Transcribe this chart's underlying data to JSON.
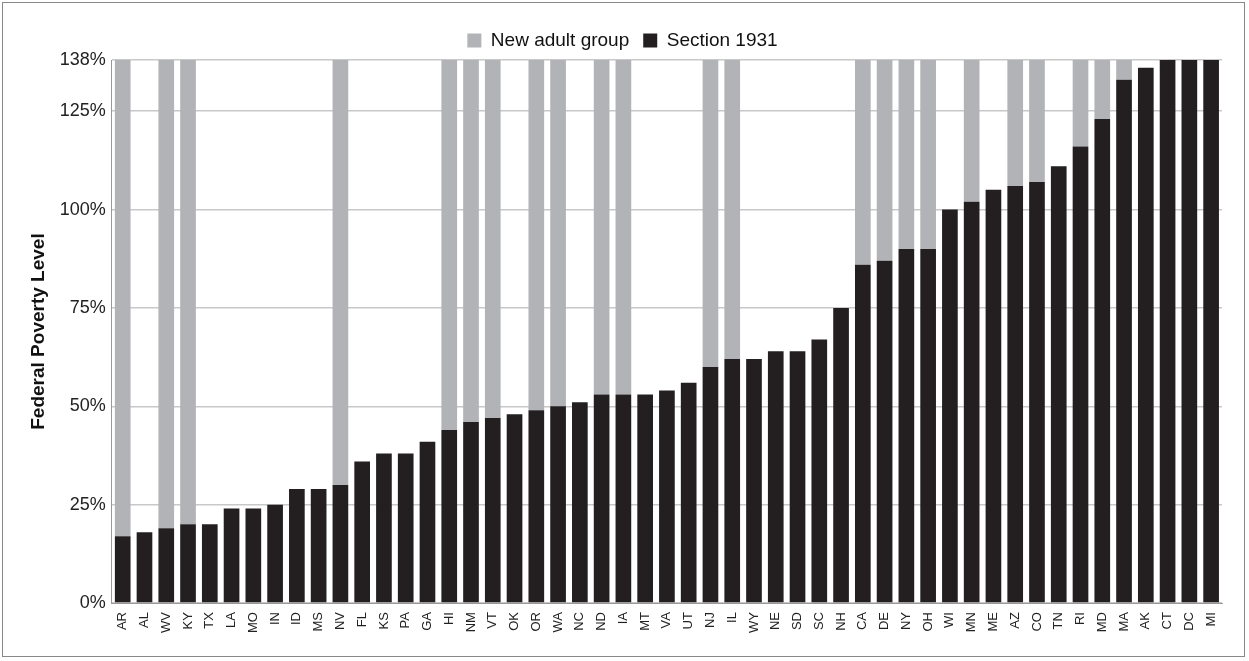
{
  "chart_data": {
    "type": "bar",
    "stacked": true,
    "ylabel": "Federal Poverty Level",
    "legend": "top",
    "grid": "y",
    "categories": [
      "AR",
      "AL",
      "WV",
      "KY",
      "TX",
      "LA",
      "MO",
      "IN",
      "ID",
      "MS",
      "NV",
      "FL",
      "KS",
      "PA",
      "GA",
      "HI",
      "NM",
      "VT",
      "OK",
      "OR",
      "WA",
      "NC",
      "ND",
      "IA",
      "MT",
      "VA",
      "UT",
      "NJ",
      "IL",
      "WY",
      "NE",
      "SD",
      "SC",
      "NH",
      "CA",
      "DE",
      "NY",
      "OH",
      "WI",
      "MN",
      "ME",
      "AZ",
      "CO",
      "TN",
      "RI",
      "MD",
      "MA",
      "AK",
      "CT",
      "DC",
      "MI"
    ],
    "series": [
      {
        "name": "Section 1931",
        "color": "#231f20",
        "values": [
          17,
          18,
          19,
          20,
          20,
          24,
          24,
          25,
          29,
          29,
          30,
          36,
          38,
          38,
          41,
          44,
          46,
          47,
          48,
          49,
          50,
          51,
          53,
          53,
          53,
          54,
          56,
          60,
          62,
          62,
          64,
          64,
          67,
          75,
          86,
          87,
          90,
          90,
          100,
          102,
          105,
          106,
          107,
          111,
          116,
          123,
          133,
          136,
          138,
          138,
          138
        ]
      },
      {
        "name": "New adult group",
        "color": "#b2b3b6",
        "values": [
          121,
          null,
          119,
          118,
          null,
          null,
          null,
          null,
          null,
          null,
          108,
          null,
          null,
          null,
          null,
          94,
          92,
          91,
          null,
          89,
          88,
          null,
          85,
          85,
          null,
          null,
          null,
          78,
          76,
          null,
          null,
          null,
          null,
          null,
          52,
          51,
          48,
          48,
          null,
          36,
          null,
          32,
          31,
          null,
          22,
          15,
          5,
          null,
          null,
          null,
          null
        ]
      }
    ],
    "ylim": [
      0,
      138
    ],
    "yticks": [
      {
        "value": 0,
        "label": "0%"
      },
      {
        "value": 25,
        "label": "25%"
      },
      {
        "value": 50,
        "label": "50%"
      },
      {
        "value": 75,
        "label": "75%"
      },
      {
        "value": 100,
        "label": "100%"
      },
      {
        "value": 125,
        "label": "125%"
      },
      {
        "value": 138,
        "label": "138%"
      }
    ]
  }
}
